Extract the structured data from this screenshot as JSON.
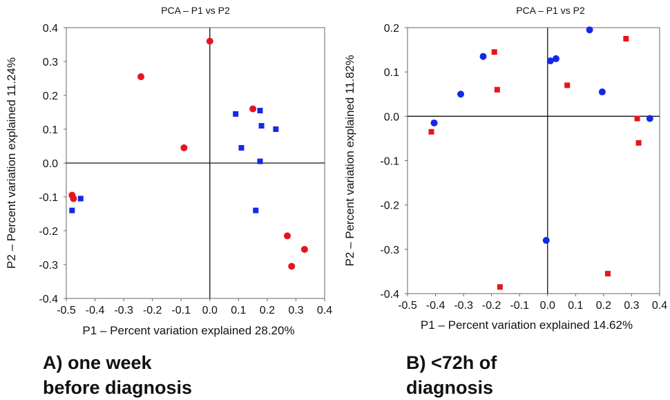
{
  "colors": {
    "series_1": "#e8141c",
    "series_2": "#1428e8"
  },
  "captions": {
    "a": {
      "line1": "A)   one week",
      "line2": "before diagnosis"
    },
    "b": {
      "line1": "B) <72h of",
      "line2": "diagnosis"
    }
  },
  "chart_data": [
    {
      "type": "scatter",
      "title": "PCA – P1 vs P2",
      "xlabel": "P1 – Percent variation explained 28.20%",
      "ylabel": "P2 – Percent variation explained 11.24%",
      "xlim": [
        -0.5,
        0.4
      ],
      "ylim": [
        -0.4,
        0.4
      ],
      "xticks": [
        -0.5,
        -0.4,
        -0.3,
        -0.2,
        -0.1,
        0.0,
        0.1,
        0.2,
        0.3,
        0.4
      ],
      "xtick_labels": [
        "-0.5",
        "-0.4",
        "-0.3",
        "-0.2",
        "-0.1",
        "0.0",
        "0.1",
        "0.2",
        "0.3",
        "0.4"
      ],
      "yticks": [
        0.4,
        0.3,
        0.2,
        0.1,
        0.0,
        -0.1,
        -0.2,
        -0.3,
        -0.4
      ],
      "ytick_labels": [
        "0.4",
        "0.3",
        "0.2",
        "0.1",
        "0.0",
        "-0.1",
        "-0.2",
        "-0.3",
        "-0.4"
      ],
      "zero_lines": true,
      "series": [
        {
          "marker": "circle",
          "color": "#e8141c",
          "points": [
            [
              0.0,
              0.36
            ],
            [
              -0.24,
              0.255
            ],
            [
              -0.09,
              0.045
            ],
            [
              0.15,
              0.16
            ],
            [
              -0.48,
              -0.095
            ],
            [
              -0.475,
              -0.105
            ],
            [
              0.27,
              -0.215
            ],
            [
              0.33,
              -0.255
            ],
            [
              0.285,
              -0.305
            ]
          ]
        },
        {
          "marker": "square",
          "color": "#1428e8",
          "points": [
            [
              0.09,
              0.145
            ],
            [
              0.175,
              0.155
            ],
            [
              0.18,
              0.11
            ],
            [
              0.23,
              0.1
            ],
            [
              0.11,
              0.045
            ],
            [
              0.175,
              0.005
            ],
            [
              -0.45,
              -0.105
            ],
            [
              -0.48,
              -0.14
            ],
            [
              0.16,
              -0.14
            ]
          ]
        }
      ]
    },
    {
      "type": "scatter",
      "title": "PCA – P1 vs P2",
      "xlabel": "P1 – Percent variation explained 14.62%",
      "ylabel": "P2 – Percent variation explained 11.82%",
      "xlim": [
        -0.5,
        0.4
      ],
      "ylim": [
        -0.4,
        0.2
      ],
      "xticks": [
        -0.5,
        -0.4,
        -0.3,
        -0.2,
        -0.1,
        0.0,
        0.1,
        0.2,
        0.3,
        0.4
      ],
      "xtick_labels": [
        "-0.5",
        "-0.4",
        "-0.3",
        "-0.2",
        "-0.1",
        "0.0",
        "0.1",
        "0.2",
        "0.3",
        "0.4"
      ],
      "yticks": [
        0.2,
        0.1,
        0.0,
        -0.1,
        -0.2,
        -0.3,
        -0.4
      ],
      "ytick_labels": [
        "0.2",
        "0.1",
        "0.0",
        "-0.1",
        "-0.2",
        "-0.3",
        "-0.4"
      ],
      "zero_lines": true,
      "series": [
        {
          "marker": "circle",
          "color": "#1428e8",
          "points": [
            [
              0.15,
              0.195
            ],
            [
              -0.23,
              0.135
            ],
            [
              0.03,
              0.13
            ],
            [
              0.01,
              0.125
            ],
            [
              -0.31,
              0.05
            ],
            [
              0.195,
              0.055
            ],
            [
              -0.405,
              -0.015
            ],
            [
              0.365,
              -0.005
            ],
            [
              -0.005,
              -0.28
            ]
          ]
        },
        {
          "marker": "square",
          "color": "#e8141c",
          "points": [
            [
              0.28,
              0.175
            ],
            [
              -0.19,
              0.145
            ],
            [
              0.07,
              0.07
            ],
            [
              -0.18,
              0.06
            ],
            [
              0.32,
              -0.005
            ],
            [
              -0.415,
              -0.035
            ],
            [
              0.325,
              -0.06
            ],
            [
              -0.17,
              -0.385
            ],
            [
              0.215,
              -0.355
            ]
          ]
        }
      ]
    }
  ]
}
